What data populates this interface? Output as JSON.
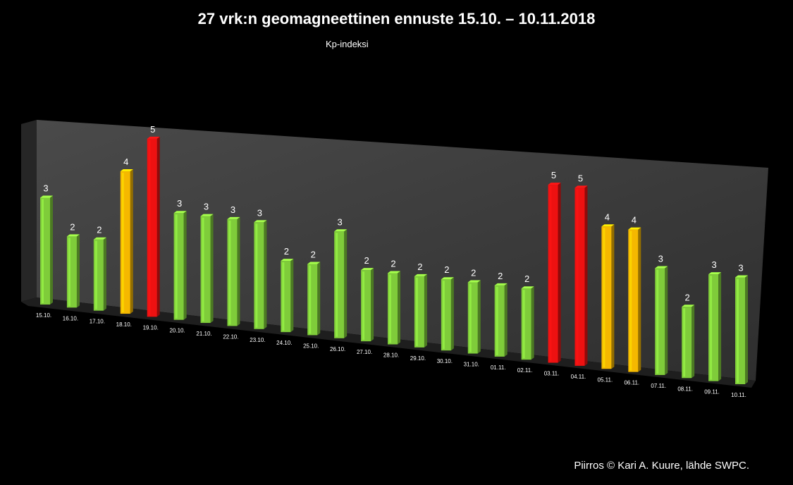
{
  "chart_data": {
    "type": "bar",
    "title": "27 vrk:n geomagneettinen ennuste 15.10. – 10.11.2018",
    "subtitle": "Kp-indeksi",
    "xlabel": "",
    "ylabel": "",
    "ylim": [
      0,
      5
    ],
    "grid": false,
    "categories": [
      "15.10.",
      "16.10.",
      "17.10.",
      "18.10.",
      "19.10.",
      "20.10.",
      "21.10.",
      "22.10.",
      "23.10.",
      "24.10.",
      "25.10.",
      "26.10.",
      "27.10.",
      "28.10.",
      "29.10.",
      "30.10.",
      "31.10.",
      "01.11.",
      "02.11.",
      "03.11.",
      "04.11.",
      "05.11.",
      "06.11.",
      "07.11.",
      "08.11.",
      "09.11.",
      "10.11."
    ],
    "values": [
      3,
      2,
      2,
      4,
      5,
      3,
      3,
      3,
      3,
      2,
      2,
      3,
      2,
      2,
      2,
      2,
      2,
      2,
      2,
      5,
      5,
      4,
      4,
      3,
      2,
      3,
      3
    ],
    "colors": {
      "low": "#7fcc3a",
      "medium": "#f5b800",
      "high": "#ee1111"
    }
  },
  "credit": "Piirros © Kari A. Kuure, lähde SWPC."
}
